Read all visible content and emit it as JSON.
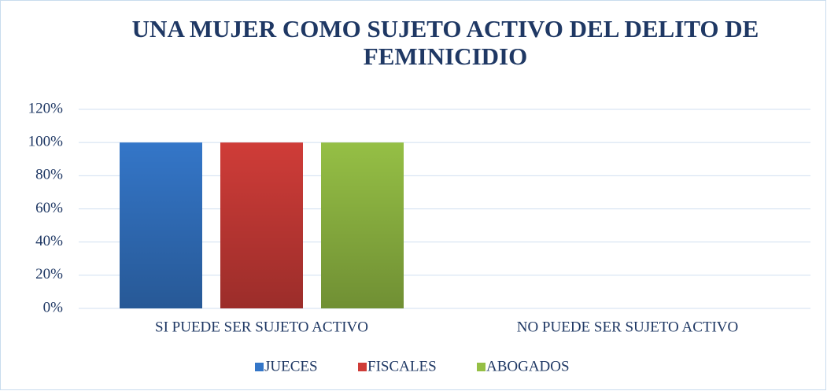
{
  "chart_data": {
    "type": "bar",
    "title": [
      "UNA MUJER COMO SUJETO ACTIVO DEL DELITO DE",
      "FEMINICIDIO"
    ],
    "categories": [
      "SI PUEDE SER SUJETO ACTIVO",
      "NO PUEDE SER SUJETO ACTIVO"
    ],
    "series": [
      {
        "name": "JUECES",
        "color": "#3476c8",
        "values": [
          100,
          0
        ]
      },
      {
        "name": "FISCALES",
        "color": "#cf3c38",
        "values": [
          100,
          0
        ]
      },
      {
        "name": "ABOGADOS",
        "color": "#95bf45",
        "values": [
          100,
          0
        ]
      }
    ],
    "ylim": [
      0,
      120
    ],
    "yticks": [
      {
        "value": 0,
        "label": "0%"
      },
      {
        "value": 20,
        "label": "20%"
      },
      {
        "value": 40,
        "label": "40%"
      },
      {
        "value": 60,
        "label": "60%"
      },
      {
        "value": 80,
        "label": "80%"
      },
      {
        "value": 100,
        "label": "100%"
      },
      {
        "value": 120,
        "label": "120%"
      }
    ],
    "grid": true,
    "legend": "bottom"
  }
}
